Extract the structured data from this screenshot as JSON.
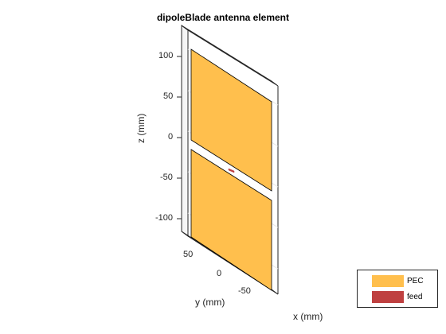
{
  "title": "dipoleBlade antenna element",
  "axes": {
    "xlabel": "x (mm)",
    "ylabel": "y (mm)",
    "zlabel": "z (mm)",
    "zticks": [
      "100",
      "50",
      "0",
      "-50",
      "-100"
    ],
    "yticks": [
      "50",
      "0",
      "-50"
    ]
  },
  "legend": {
    "position": "bottom-right",
    "items": [
      {
        "label": "PEC",
        "color": "#FFBF4D"
      },
      {
        "label": "feed",
        "color": "#BF4040"
      }
    ]
  },
  "colors": {
    "pec": "#FFBF4D",
    "feed": "#BF4040",
    "axis": "#262626",
    "grid": "#E6E6E6"
  }
}
